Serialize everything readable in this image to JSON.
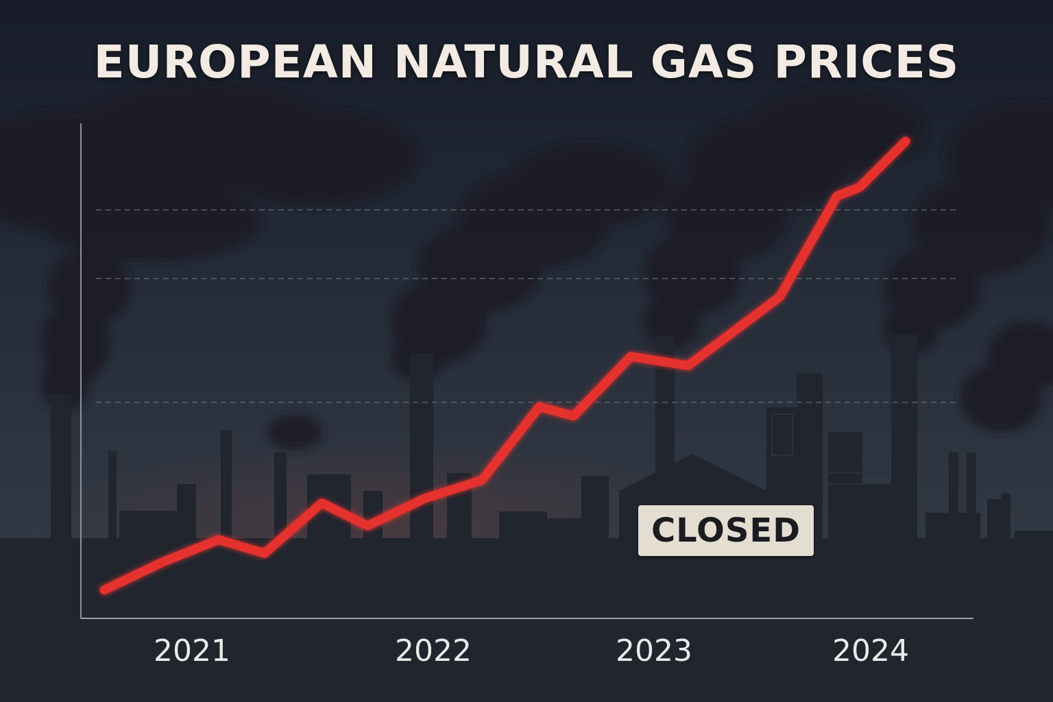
{
  "colors": {
    "sky_top": "#1b2130",
    "sky_bottom": "#343c48",
    "smoke": "#1c2029",
    "silhouette": "#222730",
    "line": "#e5312e",
    "sign_bg": "#e4ddd2"
  },
  "sign": {
    "text": "CLOSED"
  },
  "chart_data": {
    "type": "line",
    "title": "EUROPEAN NATURAL GAS PRICES",
    "xlabel": "",
    "ylabel": "",
    "xlim": [
      2021.0,
      2024.5
    ],
    "ylim": [
      0,
      100
    ],
    "grid": "horizontal dashed",
    "x_ticks": [
      {
        "value": 2021,
        "label": "2021"
      },
      {
        "value": 2022,
        "label": "2022"
      },
      {
        "value": 2023,
        "label": "2023"
      },
      {
        "value": 2024,
        "label": "2024"
      }
    ],
    "y_gridlines": [
      43,
      70,
      85
    ],
    "series": [
      {
        "values": [
          {
            "x": 2021.0,
            "y": 2
          },
          {
            "x": 2021.25,
            "y": 8
          },
          {
            "x": 2021.5,
            "y": 13
          },
          {
            "x": 2021.7,
            "y": 10
          },
          {
            "x": 2021.95,
            "y": 21
          },
          {
            "x": 2022.15,
            "y": 16
          },
          {
            "x": 2022.4,
            "y": 22
          },
          {
            "x": 2022.65,
            "y": 26
          },
          {
            "x": 2022.9,
            "y": 42
          },
          {
            "x": 2023.05,
            "y": 40
          },
          {
            "x": 2023.3,
            "y": 53
          },
          {
            "x": 2023.55,
            "y": 51
          },
          {
            "x": 2023.95,
            "y": 66
          },
          {
            "x": 2024.2,
            "y": 88
          },
          {
            "x": 2024.3,
            "y": 90
          },
          {
            "x": 2024.5,
            "y": 100
          }
        ]
      }
    ]
  }
}
